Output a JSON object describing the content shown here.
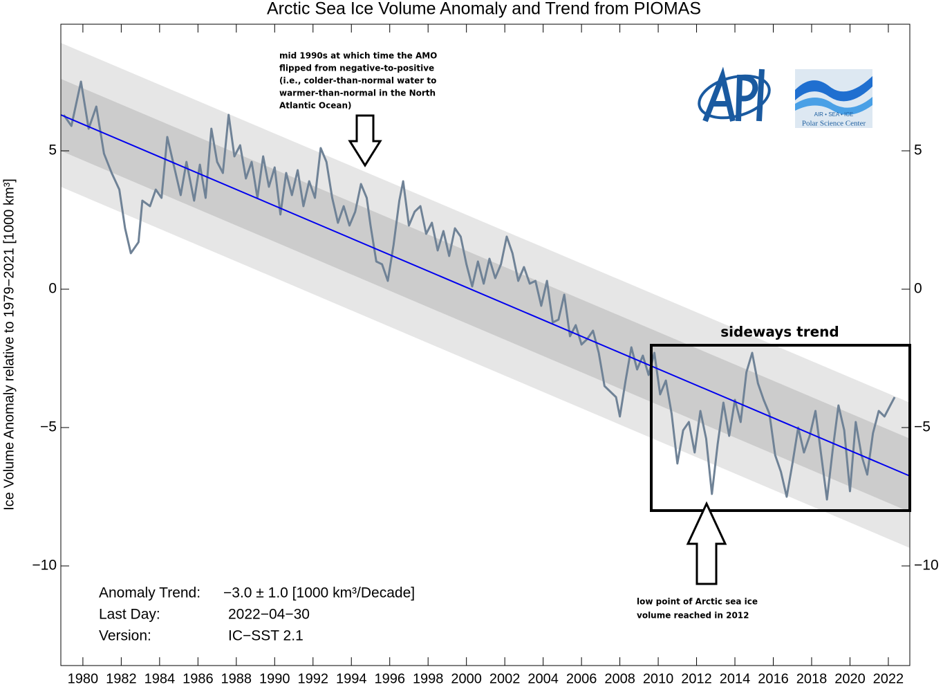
{
  "chart_data": {
    "type": "line",
    "title": "Arctic Sea Ice Volume Anomaly and Trend from PIOMAS",
    "y_label": "Ice Volume Anomaly relative to 1979−2021 [1000 km³]",
    "xlim": [
      1978.85,
      2023.12
    ],
    "ylim": [
      -13.6,
      9.575
    ],
    "xticks": [
      1980,
      1982,
      1984,
      1986,
      1988,
      1990,
      1992,
      1994,
      1996,
      1998,
      2000,
      2002,
      2004,
      2006,
      2008,
      2010,
      2012,
      2014,
      2016,
      2018,
      2020,
      2022
    ],
    "yticks": [
      {
        "value": -10,
        "label": "−10"
      },
      {
        "value": -5,
        "label": "−5"
      },
      0,
      5
    ],
    "bands": [
      {
        "color": "#e6e6e6",
        "x": [
          1978.85,
          2023.12
        ],
        "upper": [
          8.9,
          -4.1
        ],
        "lower": [
          3.7,
          -9.35
        ]
      },
      {
        "color": "#cccccc",
        "x": [
          1978.85,
          2023.12
        ],
        "upper": [
          7.6,
          -5.4
        ],
        "lower": [
          5.0,
          -8.05
        ]
      }
    ],
    "trend": {
      "color": "#0000ee",
      "x": [
        1978.85,
        2023.12
      ],
      "values": [
        6.3,
        -6.75
      ]
    },
    "series": [
      {
        "color": "#6f8296",
        "x": [
          1979.0,
          1979.4,
          1979.9,
          1980.3,
          1980.7,
          1981.1,
          1981.5,
          1981.9,
          1982.2,
          1982.5,
          1982.9,
          1983.1,
          1983.5,
          1983.8,
          1984.1,
          1984.4,
          1984.8,
          1985.1,
          1985.4,
          1985.8,
          1986.1,
          1986.4,
          1986.7,
          1987.0,
          1987.3,
          1987.6,
          1987.9,
          1988.2,
          1988.5,
          1988.8,
          1989.1,
          1989.4,
          1989.7,
          1990.0,
          1990.3,
          1990.6,
          1990.9,
          1991.2,
          1991.5,
          1991.8,
          1992.1,
          1992.4,
          1992.7,
          1993.0,
          1993.3,
          1993.6,
          1993.9,
          1994.2,
          1994.5,
          1994.8,
          1995.0,
          1995.3,
          1995.6,
          1995.9,
          1996.2,
          1996.5,
          1996.7,
          1997.0,
          1997.3,
          1997.6,
          1997.9,
          1998.2,
          1998.5,
          1998.8,
          1999.1,
          1999.4,
          1999.7,
          2000.0,
          2000.3,
          2000.6,
          2000.9,
          2001.2,
          2001.5,
          2001.8,
          2002.1,
          2002.4,
          2002.7,
          2003.0,
          2003.3,
          2003.6,
          2003.9,
          2004.2,
          2004.5,
          2004.8,
          2005.1,
          2005.4,
          2005.7,
          2006.0,
          2006.3,
          2006.6,
          2006.9,
          2007.2,
          2007.5,
          2007.8,
          2008.0,
          2008.3,
          2008.6,
          2008.9,
          2009.2,
          2009.5,
          2009.8,
          2010.1,
          2010.4,
          2010.7,
          2011.0,
          2011.3,
          2011.6,
          2011.9,
          2012.2,
          2012.5,
          2012.8,
          2013.1,
          2013.4,
          2013.7,
          2014.0,
          2014.3,
          2014.6,
          2014.9,
          2015.2,
          2015.5,
          2015.8,
          2016.1,
          2016.4,
          2016.7,
          2017.0,
          2017.3,
          2017.6,
          2017.9,
          2018.2,
          2018.5,
          2018.8,
          2019.1,
          2019.4,
          2019.7,
          2020.0,
          2020.3,
          2020.6,
          2020.9,
          2021.2,
          2021.5,
          2021.8,
          2022.1,
          2022.33
        ],
        "values": [
          6.3,
          5.9,
          7.5,
          5.8,
          6.6,
          4.9,
          4.2,
          3.6,
          2.2,
          1.3,
          1.7,
          3.2,
          3.0,
          3.6,
          3.3,
          5.5,
          4.3,
          3.4,
          4.6,
          3.2,
          4.5,
          3.3,
          5.8,
          4.6,
          4.2,
          6.3,
          4.8,
          5.2,
          4.0,
          4.6,
          3.3,
          4.8,
          3.7,
          4.4,
          2.7,
          4.2,
          3.4,
          4.3,
          3.0,
          3.9,
          3.3,
          5.1,
          4.6,
          3.3,
          2.4,
          3.0,
          2.3,
          2.8,
          3.8,
          3.3,
          2.3,
          1.0,
          0.9,
          0.3,
          1.6,
          3.2,
          3.9,
          2.3,
          2.8,
          3.0,
          2.0,
          2.4,
          1.4,
          2.1,
          1.2,
          2.2,
          1.9,
          0.9,
          0.1,
          1.0,
          0.2,
          1.1,
          0.4,
          0.9,
          1.9,
          1.3,
          0.3,
          0.8,
          0.2,
          0.3,
          -0.6,
          0.3,
          -1.2,
          -1.1,
          -0.2,
          -1.7,
          -1.3,
          -2.0,
          -1.8,
          -1.5,
          -2.3,
          -3.5,
          -3.7,
          -3.9,
          -4.6,
          -3.3,
          -2.1,
          -2.9,
          -2.4,
          -3.1,
          -2.3,
          -3.8,
          -3.3,
          -4.5,
          -6.3,
          -5.1,
          -4.8,
          -5.9,
          -4.4,
          -5.4,
          -7.4,
          -5.6,
          -4.1,
          -5.3,
          -4.0,
          -4.8,
          -3.0,
          -2.3,
          -3.4,
          -4.0,
          -4.5,
          -6.0,
          -6.6,
          -7.5,
          -6.3,
          -5.0,
          -5.9,
          -5.3,
          -4.4,
          -6.0,
          -7.6,
          -5.8,
          -4.2,
          -5.1,
          -7.3,
          -4.8,
          -6.0,
          -6.7,
          -5.2,
          -4.4,
          -4.6,
          -4.2,
          -3.9
        ]
      }
    ],
    "info": [
      [
        "Anomaly Trend:",
        "−3.0 ± 1.0 [1000 km³/Decade]"
      ],
      [
        "Last Day:",
        "2022−04−30"
      ],
      [
        "Version:",
        "IC−SST 2.1"
      ]
    ],
    "annotations": [
      {
        "lines": [
          "mid 1990s at which time the AMO",
          "flipped from negative-to-positive",
          "(i.e., colder-than-normal water to",
          "warmer-than-normal in the North",
          "Atlantic Ocean)"
        ]
      },
      {
        "lines": [
          "sideways trend"
        ]
      },
      {
        "lines": [
          "low point of Arctic sea ice",
          "volume reached in 2012"
        ]
      }
    ],
    "logo_texts": [
      "AIR  •  SEA  •  ICE",
      "Polar Science Center"
    ]
  }
}
